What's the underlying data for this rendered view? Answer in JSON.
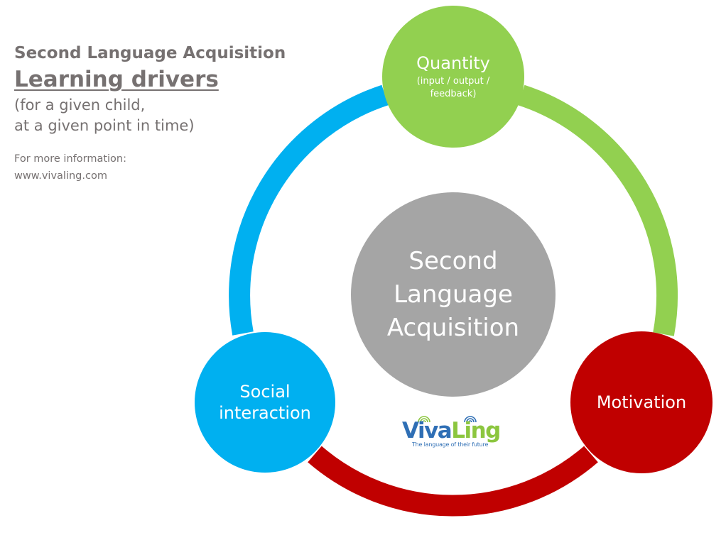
{
  "header": {
    "subtitle": "Second Language Acquisition",
    "title": "Learning drivers",
    "qualifier_line1": "(for a given child,",
    "qualifier_line2": "at a given point in time)",
    "info_label": "For more information:",
    "info_url": "www.vivaling.com"
  },
  "diagram": {
    "center": {
      "line1": "Second",
      "line2": "Language",
      "line3": "Acquisition"
    },
    "nodes": {
      "quantity": {
        "label": "Quantity",
        "sublabel": "(input / output / feedback)"
      },
      "social": {
        "line1": "Social",
        "line2": "interaction"
      },
      "motivation": {
        "label": "Motivation"
      }
    }
  },
  "logo": {
    "word_part1": "Viva",
    "word_part2": "Ling",
    "tagline": "The language of their future"
  },
  "colors": {
    "quantity": "#92d050",
    "social": "#00b0f0",
    "motivation": "#c00000",
    "center": "#a5a5a5",
    "text_gray": "#767171",
    "logo_blue": "#2f6fb5",
    "logo_green": "#8cc63f"
  }
}
